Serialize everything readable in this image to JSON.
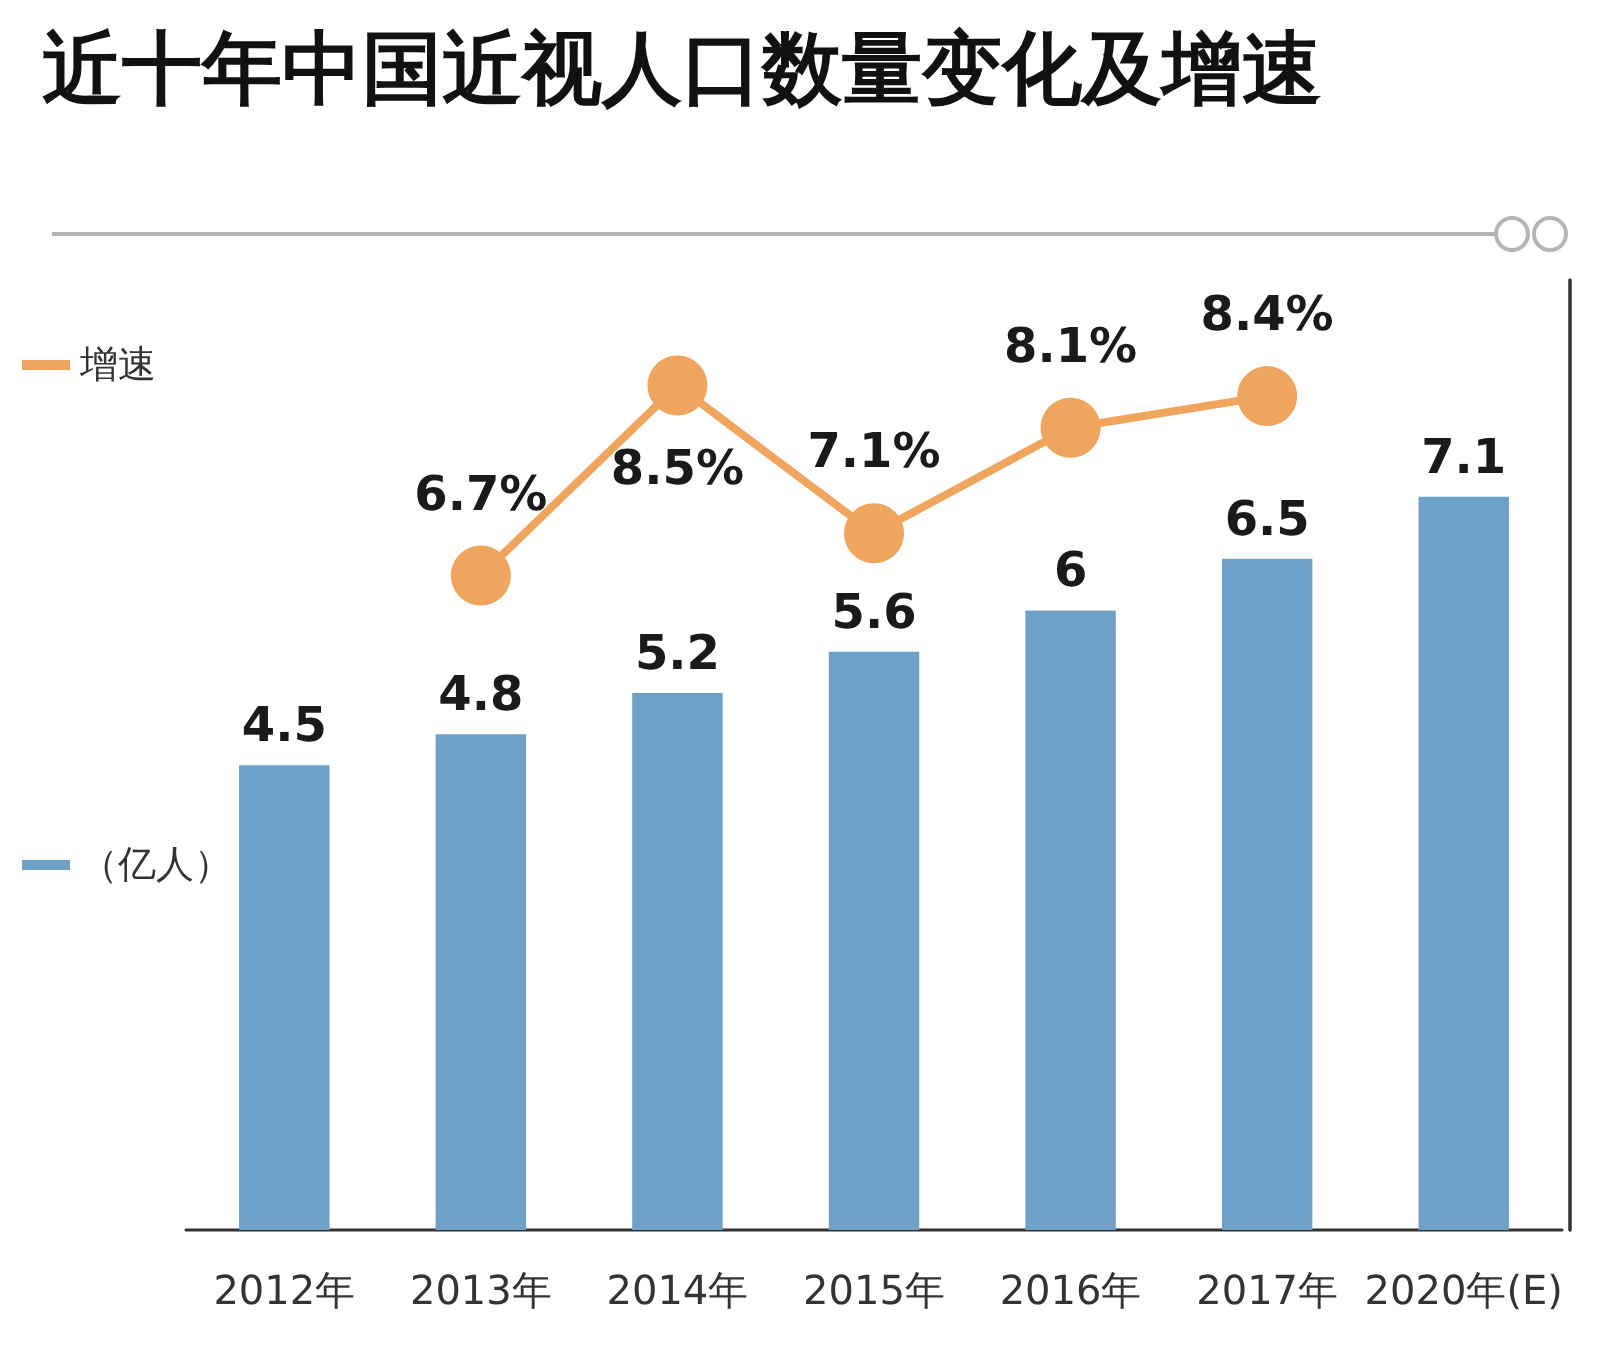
{
  "chart_data": {
    "type": "bar",
    "title": "近十年中国近视人口数量变化及增速",
    "categories": [
      "2012年",
      "2013年",
      "2014年",
      "2015年",
      "2016年",
      "2017年",
      "2020年(E)"
    ],
    "series": [
      {
        "name": "（亿人）",
        "color": "#6fa0c7",
        "values": [
          4.5,
          4.8,
          5.2,
          5.6,
          6,
          6.5,
          7.1
        ],
        "value_labels": [
          "4.5",
          "4.8",
          "5.2",
          "5.6",
          "6",
          "6.5",
          "7.1"
        ]
      },
      {
        "name": "增速",
        "type": "line",
        "axis": "y2",
        "color": "#f0a55f",
        "values": [
          null,
          6.7,
          8.5,
          7.1,
          8.1,
          8.4,
          null
        ],
        "value_labels": [
          null,
          "6.7%",
          "8.5%",
          "7.1%",
          "8.1%",
          "8.4%",
          null
        ]
      }
    ],
    "ylim": [
      0,
      9.2
    ],
    "y2lim": [
      0.5,
      9.5
    ],
    "legend": "left",
    "marker": "circle",
    "line_style": "solid"
  }
}
